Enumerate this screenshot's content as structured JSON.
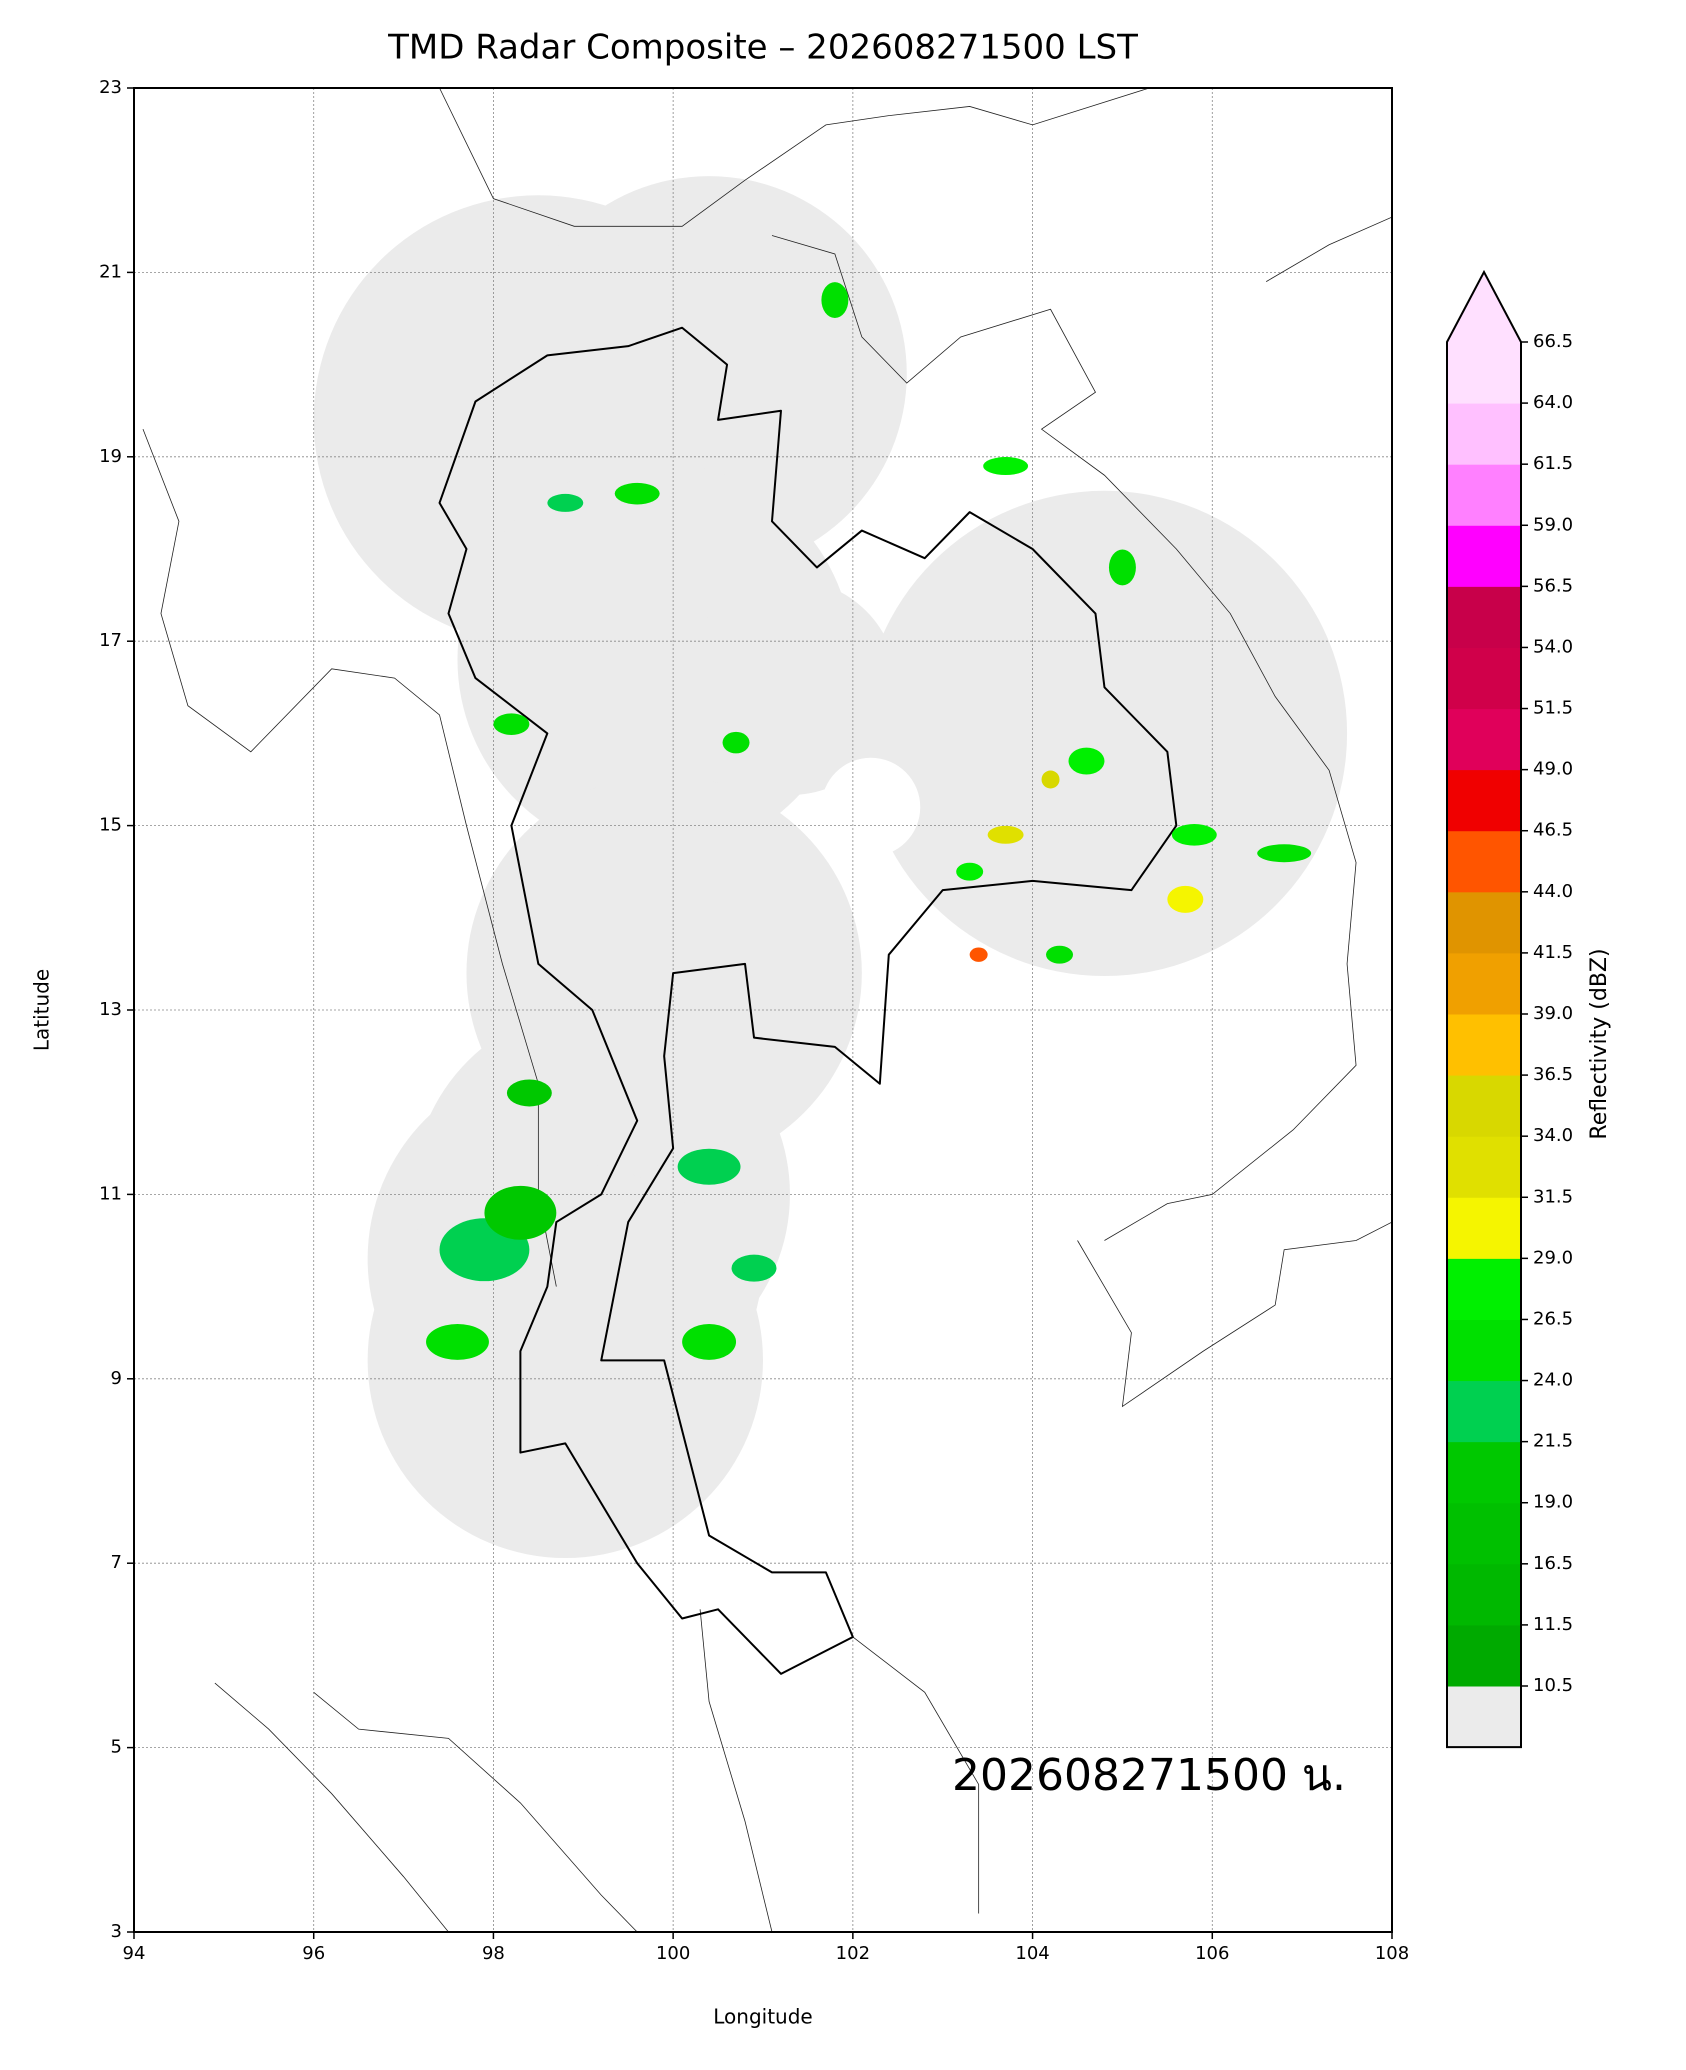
{
  "chart_data": {
    "type": "map",
    "title": "TMD Radar Composite – 202608271500 LST",
    "xlabel": "Longitude",
    "ylabel": "Latitude",
    "annotation": "202608271500 น.",
    "xlim": [
      94,
      108
    ],
    "ylim": [
      3,
      23
    ],
    "xticks": [
      94,
      96,
      98,
      100,
      102,
      104,
      106,
      108
    ],
    "yticks": [
      3,
      5,
      7,
      9,
      11,
      13,
      15,
      17,
      19,
      21,
      23
    ],
    "grid": true,
    "colorbar": {
      "label": "Reflectivity (dBZ)",
      "under_color": "#ebebeb",
      "over_color": "#ffe0ff",
      "ticks": [
        10.5,
        11.5,
        16.5,
        {
          "value": 19,
          "label": "19.0"
        },
        21.5,
        {
          "value": 24,
          "label": "24.0"
        },
        26.5,
        {
          "value": 29,
          "label": "29.0"
        },
        31.5,
        {
          "value": 34,
          "label": "34.0"
        },
        36.5,
        {
          "value": 39,
          "label": "39.0"
        },
        41.5,
        {
          "value": 44,
          "label": "44.0"
        },
        46.5,
        {
          "value": 49,
          "label": "49.0"
        },
        51.5,
        {
          "value": 54,
          "label": "54.0"
        },
        56.5,
        {
          "value": 59,
          "label": "59.0"
        },
        61.5,
        {
          "value": 64,
          "label": "64.0"
        },
        66.5
      ],
      "colors": [
        "#00aa00",
        "#00b800",
        "#00c000",
        "#00c800",
        "#00d050",
        "#00e000",
        "#00f000",
        "#f5f500",
        "#e0e000",
        "#d8d800",
        "#ffc000",
        "#f0a000",
        "#e09400",
        "#ff5500",
        "#f00000",
        "#e0005a",
        "#d0004a",
        "#c8004a",
        "#ff00ff",
        "#ff80ff",
        "#ffc0ff",
        "#ffe0ff"
      ]
    }
  }
}
